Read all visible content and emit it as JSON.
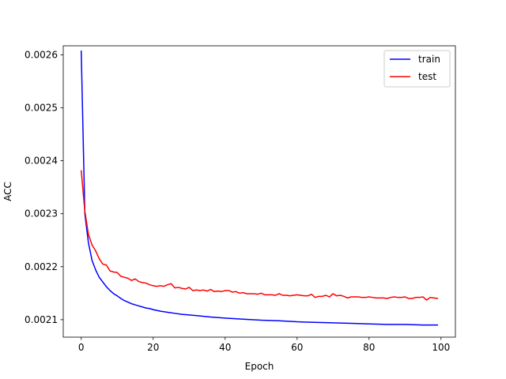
{
  "chart_data": {
    "type": "line",
    "title": "",
    "xlabel": "Epoch",
    "ylabel": "ACC",
    "xlim": [
      -5,
      104
    ],
    "ylim": [
      0.002067,
      0.002617
    ],
    "x_ticks": [
      0,
      20,
      40,
      60,
      80,
      100
    ],
    "x_tick_labels": [
      "0",
      "20",
      "40",
      "60",
      "80",
      "100"
    ],
    "y_ticks": [
      0.0021,
      0.0022,
      0.0023,
      0.0024,
      0.0025,
      0.0026
    ],
    "y_tick_labels": [
      "0.0021",
      "0.0022",
      "0.0023",
      "0.0024",
      "0.0025",
      "0.0026"
    ],
    "grid": false,
    "legend_position": "top-right",
    "series": [
      {
        "name": "train",
        "color": "#0000ff",
        "x": [
          0,
          1,
          2,
          3,
          4,
          5,
          6,
          7,
          8,
          9,
          10,
          11,
          12,
          13,
          14,
          15,
          16,
          17,
          18,
          19,
          20,
          22,
          24,
          26,
          28,
          30,
          33,
          36,
          40,
          45,
          50,
          55,
          60,
          65,
          70,
          75,
          80,
          85,
          90,
          95,
          99
        ],
        "y": [
          0.002607,
          0.0023,
          0.002245,
          0.002212,
          0.002194,
          0.00218,
          0.002171,
          0.002162,
          0.002155,
          0.002149,
          0.002145,
          0.00214,
          0.002136,
          0.002133,
          0.00213,
          0.002128,
          0.002126,
          0.002124,
          0.002122,
          0.002121,
          0.002119,
          0.002116,
          0.002114,
          0.002112,
          0.00211,
          0.002109,
          0.002107,
          0.002105,
          0.002103,
          0.002101,
          0.002099,
          0.002098,
          0.002096,
          0.002095,
          0.002094,
          0.002093,
          0.002092,
          0.002091,
          0.002091,
          0.00209,
          0.00209
        ]
      },
      {
        "name": "test",
        "color": "#ff0000",
        "x": [
          0,
          1,
          2,
          3,
          4,
          5,
          6,
          7,
          8,
          9,
          10,
          11,
          12,
          13,
          14,
          15,
          16,
          17,
          18,
          19,
          20,
          21,
          22,
          23,
          24,
          25,
          26,
          27,
          28,
          29,
          30,
          31,
          32,
          33,
          34,
          35,
          36,
          37,
          38,
          39,
          40,
          41,
          42,
          43,
          44,
          45,
          46,
          47,
          48,
          49,
          50,
          51,
          52,
          53,
          54,
          55,
          56,
          57,
          58,
          59,
          60,
          61,
          62,
          63,
          64,
          65,
          66,
          67,
          68,
          69,
          70,
          71,
          72,
          73,
          74,
          75,
          76,
          77,
          78,
          79,
          80,
          81,
          82,
          83,
          84,
          85,
          86,
          87,
          88,
          89,
          90,
          91,
          92,
          93,
          94,
          95,
          96,
          97,
          98,
          99
        ],
        "y": [
          0.002381,
          0.002305,
          0.002261,
          0.002241,
          0.00223,
          0.002215,
          0.002205,
          0.002203,
          0.002192,
          0.00219,
          0.002189,
          0.002182,
          0.00218,
          0.002178,
          0.002174,
          0.002177,
          0.002172,
          0.00217,
          0.002169,
          0.002166,
          0.002164,
          0.002163,
          0.002164,
          0.002163,
          0.002166,
          0.002168,
          0.00216,
          0.002161,
          0.002159,
          0.002158,
          0.002161,
          0.002155,
          0.002156,
          0.002155,
          0.002156,
          0.002154,
          0.002157,
          0.002153,
          0.002154,
          0.002153,
          0.002155,
          0.002155,
          0.002152,
          0.002153,
          0.00215,
          0.002151,
          0.002149,
          0.002149,
          0.002149,
          0.002148,
          0.00215,
          0.002147,
          0.002147,
          0.002147,
          0.002146,
          0.002149,
          0.002146,
          0.002146,
          0.002145,
          0.002146,
          0.002147,
          0.002146,
          0.002145,
          0.002145,
          0.002148,
          0.002142,
          0.002144,
          0.002144,
          0.002146,
          0.002143,
          0.002149,
          0.002145,
          0.002146,
          0.002144,
          0.002141,
          0.002143,
          0.002143,
          0.002143,
          0.002142,
          0.002142,
          0.002143,
          0.002142,
          0.002141,
          0.002141,
          0.002141,
          0.00214,
          0.002142,
          0.002143,
          0.002142,
          0.002142,
          0.002143,
          0.00214,
          0.00214,
          0.002142,
          0.002142,
          0.002143,
          0.002137,
          0.002142,
          0.002141,
          0.00214
        ]
      }
    ]
  }
}
